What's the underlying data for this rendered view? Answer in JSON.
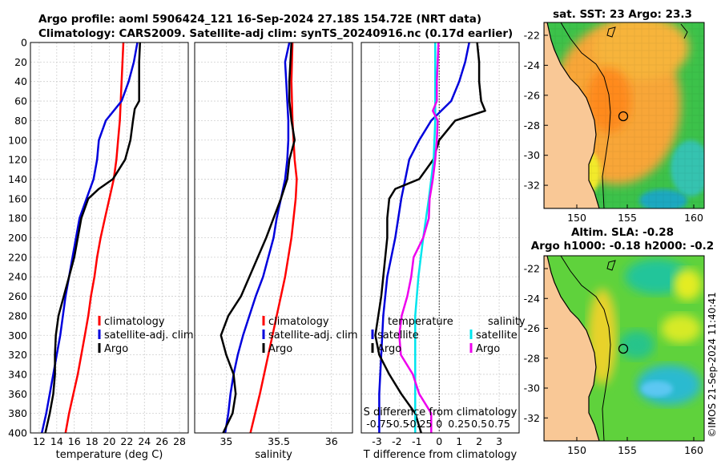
{
  "figure": {
    "title_line1": "Argo profile: aoml 5906424_121 16-Sep-2024 27.18S 154.72E (NRT data)",
    "title_line2": "Climatology: CARS2009. Satellite-adj clim: synTS_20240916.nc (0.17d earlier)",
    "timestamp": "©IMOS 21-Sep-2024 11:40:41"
  },
  "colors": {
    "climatology": "#ff0000",
    "satellite": "#0000dd",
    "argo": "#000000",
    "satellite_s": "#00e5ee",
    "argo_s": "#ee00ee",
    "land": "#f9c896"
  },
  "chart_data": [
    {
      "id": "temperature",
      "type": "line",
      "xlabel": "temperature (deg C)",
      "ylabel": "",
      "xlim": [
        11,
        29
      ],
      "ylim": [
        400,
        0
      ],
      "xticks": [
        12,
        14,
        16,
        18,
        20,
        22,
        24,
        26,
        28
      ],
      "yticks": [
        0,
        20,
        40,
        60,
        80,
        100,
        120,
        140,
        160,
        180,
        200,
        220,
        240,
        260,
        280,
        300,
        320,
        340,
        360,
        380,
        400
      ],
      "legend": [
        "climatology",
        "satellite-adj. clim",
        "Argo"
      ],
      "series": [
        {
          "name": "climatology",
          "color": "#ff0000",
          "depth": [
            0,
            20,
            40,
            60,
            80,
            100,
            120,
            140,
            160,
            180,
            200,
            220,
            240,
            260,
            280,
            300,
            320,
            340,
            360,
            380,
            400
          ],
          "values": [
            21.6,
            21.5,
            21.4,
            21.3,
            21.2,
            21.0,
            20.8,
            20.5,
            20.0,
            19.5,
            19.0,
            18.6,
            18.3,
            17.9,
            17.6,
            17.2,
            16.8,
            16.4,
            15.9,
            15.4,
            15.0
          ]
        },
        {
          "name": "satellite-adj. clim",
          "color": "#0000dd",
          "depth": [
            0,
            20,
            40,
            60,
            80,
            100,
            120,
            140,
            160,
            180,
            200,
            220,
            240,
            260,
            280,
            300,
            320,
            340,
            360,
            380,
            400
          ],
          "values": [
            23.2,
            22.8,
            22.2,
            21.4,
            19.6,
            18.8,
            18.6,
            18.2,
            17.4,
            16.6,
            16.2,
            15.8,
            15.4,
            15.0,
            14.7,
            14.4,
            14.0,
            13.6,
            13.2,
            12.8,
            12.3
          ]
        },
        {
          "name": "Argo",
          "color": "#000000",
          "depth": [
            0,
            20,
            40,
            60,
            68,
            80,
            100,
            120,
            140,
            150,
            160,
            180,
            200,
            220,
            240,
            260,
            280,
            300,
            320,
            340,
            360,
            380,
            400
          ],
          "values": [
            23.5,
            23.4,
            23.4,
            23.4,
            22.9,
            22.7,
            22.4,
            21.8,
            20.4,
            18.8,
            17.6,
            16.8,
            16.4,
            16.0,
            15.4,
            14.8,
            14.2,
            13.9,
            13.8,
            13.8,
            13.6,
            13.2,
            12.7
          ]
        }
      ]
    },
    {
      "id": "salinity",
      "type": "line",
      "xlabel": "salinity",
      "ylabel": "",
      "xlim": [
        34.7,
        36.2
      ],
      "ylim": [
        400,
        0
      ],
      "xticks": [
        35,
        35.5,
        36
      ],
      "legend": [
        "climatology",
        "satellite-adj. clim",
        "Argo"
      ],
      "series": [
        {
          "name": "climatology",
          "color": "#ff0000",
          "depth": [
            0,
            40,
            80,
            120,
            140,
            160,
            200,
            240,
            280,
            320,
            360,
            400
          ],
          "values": [
            35.63,
            35.62,
            35.63,
            35.65,
            35.67,
            35.66,
            35.62,
            35.56,
            35.48,
            35.4,
            35.32,
            35.23
          ]
        },
        {
          "name": "satellite-adj. clim",
          "color": "#0000dd",
          "depth": [
            0,
            20,
            40,
            60,
            80,
            100,
            120,
            140,
            160,
            180,
            200,
            220,
            240,
            260,
            280,
            300,
            320,
            340,
            360,
            380,
            400
          ],
          "values": [
            35.6,
            35.56,
            35.57,
            35.58,
            35.59,
            35.59,
            35.58,
            35.56,
            35.52,
            35.48,
            35.45,
            35.4,
            35.35,
            35.28,
            35.22,
            35.16,
            35.11,
            35.07,
            35.04,
            35.02,
            34.99
          ]
        },
        {
          "name": "Argo",
          "color": "#000000",
          "depth": [
            0,
            20,
            40,
            60,
            80,
            100,
            120,
            140,
            160,
            180,
            200,
            220,
            240,
            260,
            280,
            300,
            320,
            340,
            360,
            380,
            400
          ],
          "values": [
            35.62,
            35.61,
            35.6,
            35.6,
            35.62,
            35.65,
            35.6,
            35.58,
            35.52,
            35.45,
            35.38,
            35.3,
            35.22,
            35.14,
            35.02,
            34.95,
            35.0,
            35.07,
            35.09,
            35.06,
            34.97
          ]
        }
      ]
    },
    {
      "id": "differences",
      "type": "line",
      "xlabel": "T difference from climatology",
      "xlabel2": "S difference from climatology",
      "xlim": [
        -3.9,
        4.0
      ],
      "ylim": [
        400,
        0
      ],
      "xticks": [
        -3,
        -2,
        -1,
        0,
        1,
        2,
        3
      ],
      "xticks2": [
        "-0.75",
        "-0.5",
        "-0.25",
        "0",
        "0.25",
        "0.5",
        "0.75"
      ],
      "legend_left_title": "temperature",
      "legend_right_title": "salinity",
      "legend": [
        "satellite",
        "Argo"
      ],
      "series": [
        {
          "name": "T satellite",
          "color": "#0000dd",
          "depth": [
            0,
            20,
            40,
            60,
            80,
            100,
            120,
            140,
            160,
            200,
            240,
            280,
            320,
            360,
            400
          ],
          "values": [
            1.5,
            1.3,
            1.0,
            0.6,
            -0.4,
            -1.0,
            -1.5,
            -1.7,
            -1.9,
            -2.2,
            -2.6,
            -2.8,
            -2.9,
            -3.0,
            -3.0
          ]
        },
        {
          "name": "T Argo",
          "color": "#000000",
          "depth": [
            0,
            20,
            40,
            60,
            70,
            80,
            100,
            120,
            140,
            150,
            160,
            180,
            200,
            220,
            260,
            300,
            320,
            340,
            360,
            380,
            400
          ],
          "values": [
            1.9,
            2.0,
            2.0,
            2.1,
            2.3,
            0.8,
            0.0,
            -0.3,
            -1.0,
            -2.2,
            -2.5,
            -2.6,
            -2.6,
            -2.7,
            -2.9,
            -3.2,
            -3.0,
            -2.5,
            -1.9,
            -1.2,
            -0.9
          ]
        },
        {
          "name": "S satellite",
          "color": "#00e5ee",
          "depth": [
            0,
            40,
            80,
            120,
            160,
            200,
            240,
            280,
            320,
            360,
            400
          ],
          "values": [
            -0.05,
            -0.05,
            -0.05,
            -0.07,
            -0.13,
            -0.2,
            -0.26,
            -0.3,
            -0.3,
            -0.3,
            -0.3
          ]
        },
        {
          "name": "S Argo",
          "color": "#ee00ee",
          "depth": [
            0,
            20,
            40,
            60,
            70,
            80,
            100,
            120,
            140,
            160,
            180,
            200,
            220,
            240,
            260,
            280,
            300,
            320,
            340,
            360,
            380,
            400
          ],
          "values": [
            -0.01,
            -0.02,
            -0.03,
            -0.03,
            -0.08,
            -0.02,
            -0.03,
            -0.05,
            -0.08,
            -0.12,
            -0.13,
            -0.2,
            -0.32,
            -0.35,
            -0.4,
            -0.47,
            -0.5,
            -0.48,
            -0.33,
            -0.25,
            -0.1,
            -0.1
          ]
        }
      ]
    }
  ],
  "maps": {
    "sst": {
      "title": "sat. SST: 23 Argo: 23.3",
      "lat_ticks": [
        "-22",
        "-24",
        "-26",
        "-28",
        "-30",
        "-32"
      ],
      "lon_ticks": [
        "150",
        "155",
        "160"
      ]
    },
    "sla": {
      "title1": "Altim. SLA: -0.28",
      "title2": "Argo h1000: -0.18 h2000: -0.2",
      "lat_ticks": [
        "-22",
        "-24",
        "-26",
        "-28",
        "-30",
        "-32"
      ],
      "lon_ticks": [
        "150",
        "155",
        "160"
      ]
    }
  }
}
